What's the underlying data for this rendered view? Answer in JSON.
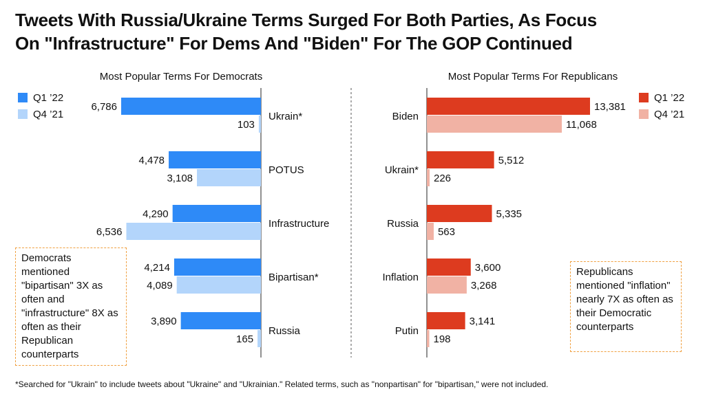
{
  "title_line1": "Tweets With Russia/Ukraine Terms Surged For Both Parties, As Focus",
  "title_line2": "On \"Infrastructure\" For Dems And \"Biden\" For The GOP Continued",
  "footnote": "*Searched for \"Ukrain\" to include tweets about \"Ukraine\" and \"Ukrainian.\" Related terms, such as \"nonpartisan\" for \"bipartisan,\" were not included.",
  "callouts": {
    "democrats": "Democrats mentioned \"bipartisan\" 3X as often and \"infrastructure\" 8X as often as their Republican counterparts",
    "republicans": "Republicans mentioned \"inflation\" nearly 7X as often as their Democratic counterparts"
  },
  "colors": {
    "dem_q1": "#2e8af7",
    "dem_q4": "#b3d5fb",
    "gop_q1": "#dd3b1f",
    "gop_q4": "#f1b2a4"
  },
  "chart_data": [
    {
      "type": "bar",
      "orientation": "horizontal",
      "direction": "right-to-left",
      "title": "Most Popular Terms For Democrats",
      "legend_position": "top-left",
      "categories": [
        "Ukrain*",
        "POTUS",
        "Infrastructure",
        "Bipartisan*",
        "Russia"
      ],
      "series": [
        {
          "name": "Q1 ’22",
          "values": [
            6786,
            4478,
            4290,
            4214,
            3890
          ]
        },
        {
          "name": "Q4 ’21",
          "values": [
            103,
            3108,
            6536,
            4089,
            165
          ]
        }
      ],
      "data_labels": [
        [
          "6,786",
          "4,478",
          "4,290",
          "4,214",
          "3,890"
        ],
        [
          "103",
          "3,108",
          "6,536",
          "4,089",
          "165"
        ]
      ]
    },
    {
      "type": "bar",
      "orientation": "horizontal",
      "direction": "left-to-right",
      "title": "Most Popular Terms For Republicans",
      "legend_position": "top-right",
      "categories": [
        "Biden",
        "Ukrain*",
        "Russia",
        "Inflation",
        "Putin"
      ],
      "series": [
        {
          "name": "Q1 ’22",
          "values": [
            13381,
            5512,
            5335,
            3600,
            3141
          ]
        },
        {
          "name": "Q4 ’21",
          "values": [
            11068,
            226,
            563,
            3268,
            198
          ]
        }
      ],
      "data_labels": [
        [
          "13,381",
          "5,512",
          "5,335",
          "3,600",
          "3,141"
        ],
        [
          "11,068",
          "226",
          "563",
          "3,268",
          "198"
        ]
      ]
    }
  ]
}
